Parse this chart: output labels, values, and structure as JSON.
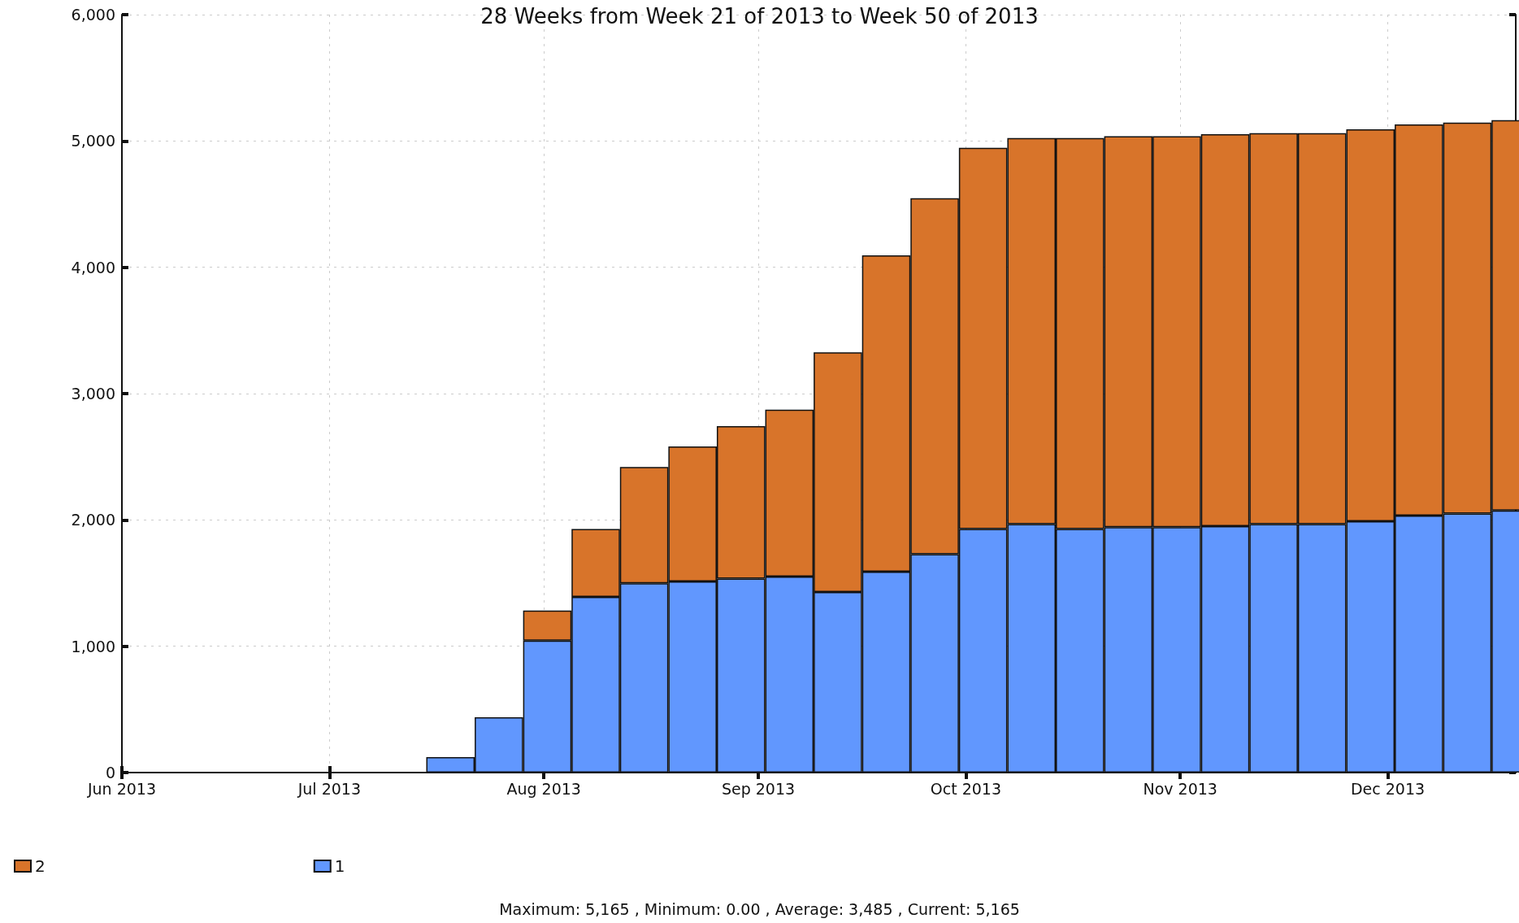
{
  "chart_data": {
    "type": "bar",
    "title": "28 Weeks from Week 21 of 2013 to Week 50 of 2013",
    "stacked": true,
    "x": [
      "2013-07-18T12:00",
      "2013-07-25T12:00",
      "2013-08-01T12:00",
      "2013-08-08T12:00",
      "2013-08-15T12:00",
      "2013-08-22T12:00",
      "2013-08-29T12:00",
      "2013-09-05T12:00",
      "2013-09-12T12:00",
      "2013-09-19T12:00",
      "2013-09-26T12:00",
      "2013-10-03T12:00",
      "2013-10-10T12:00",
      "2013-10-17T12:00",
      "2013-10-24T12:00",
      "2013-10-31T12:00",
      "2013-11-07T12:00",
      "2013-11-14T12:00",
      "2013-11-21T12:00",
      "2013-11-28T12:00",
      "2013-12-05T12:00",
      "2013-12-12T12:00",
      "2013-12-19T12:00"
    ],
    "series": [
      {
        "name": "1",
        "color": "#6197fe",
        "values": [
          123,
          438,
          1045,
          1390,
          1498,
          1513,
          1536,
          1551,
          1429,
          1590,
          1728,
          1928,
          1966,
          1928,
          1943,
          1943,
          1951,
          1966,
          1966,
          1989,
          2035,
          2051,
          2074
        ]
      },
      {
        "name": "2",
        "color": "#d8742a",
        "values": [
          null,
          null,
          238,
          538,
          921,
          1068,
          1206,
          1322,
          1897,
          2504,
          2819,
          3018,
          3057,
          3095,
          3095,
          3095,
          3103,
          3095,
          3095,
          3103,
          3096,
          3095,
          3091
        ]
      }
    ],
    "xlim": [
      "2013-06-01",
      "2013-12-19T12:00"
    ],
    "xticks": [
      {
        "value": "2013-06-01",
        "label": "Jun 2013"
      },
      {
        "value": "2013-07-01",
        "label": "Jul 2013"
      },
      {
        "value": "2013-08-01",
        "label": "Aug 2013"
      },
      {
        "value": "2013-09-01",
        "label": "Sep 2013"
      },
      {
        "value": "2013-10-01",
        "label": "Oct 2013"
      },
      {
        "value": "2013-11-01",
        "label": "Nov 2013"
      },
      {
        "value": "2013-12-01",
        "label": "Dec 2013"
      }
    ],
    "ylim": [
      0,
      6000
    ],
    "yticks": [
      {
        "value": 0,
        "label": "0"
      },
      {
        "value": 1000,
        "label": "1,000"
      },
      {
        "value": 2000,
        "label": "2,000"
      },
      {
        "value": 3000,
        "label": "3,000"
      },
      {
        "value": 4000,
        "label": "4,000"
      },
      {
        "value": 5000,
        "label": "5,000"
      },
      {
        "value": 6000,
        "label": "6,000"
      }
    ],
    "grid": true,
    "legend": "bottom left",
    "annotations": [
      "Maximum: 5,165 , Minimum: 0.00 , Average: 3,485 , Current: 5,165"
    ]
  }
}
